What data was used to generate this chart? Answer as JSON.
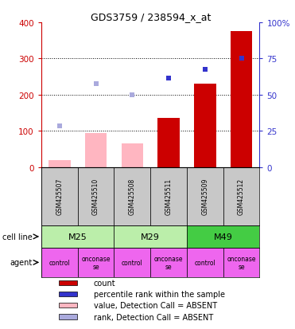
{
  "title": "GDS3759 / 238594_x_at",
  "samples": [
    "GSM425507",
    "GSM425510",
    "GSM425508",
    "GSM425511",
    "GSM425509",
    "GSM425512"
  ],
  "count_values": [
    null,
    null,
    null,
    135,
    230,
    375
  ],
  "count_absent": [
    20,
    95,
    65,
    null,
    null,
    null
  ],
  "rank_values_left": [
    null,
    null,
    null,
    245,
    270,
    300
  ],
  "rank_absent_left": [
    115,
    230,
    200,
    null,
    null,
    null
  ],
  "rank_values_right": [
    null,
    null,
    null,
    61,
    68,
    75
  ],
  "rank_absent_right": [
    29,
    58,
    50,
    null,
    null,
    null
  ],
  "ylim_left": [
    0,
    400
  ],
  "ylim_right": [
    0,
    100
  ],
  "yticks_left": [
    0,
    100,
    200,
    300,
    400
  ],
  "yticks_right": [
    0,
    25,
    50,
    75,
    100
  ],
  "yticklabels_right": [
    "0",
    "25",
    "50",
    "75",
    "100%"
  ],
  "cell_line_groups": [
    {
      "label": "M25",
      "start": 0,
      "end": 2,
      "color": "#BBEEAA"
    },
    {
      "label": "M29",
      "start": 2,
      "end": 4,
      "color": "#BBEEAA"
    },
    {
      "label": "M49",
      "start": 4,
      "end": 6,
      "color": "#44CC44"
    }
  ],
  "agents": [
    "control",
    "onconase\nse",
    "control",
    "onconase\nse",
    "control",
    "onconase\nse"
  ],
  "color_count": "#CC0000",
  "color_rank": "#3333CC",
  "color_count_absent": "#FFB6C1",
  "color_rank_absent": "#AAAADD",
  "bar_width": 0.6,
  "gsm_bg_color": "#C8C8C8",
  "agent_color": "#EE66EE",
  "legend_items": [
    {
      "color": "#CC0000",
      "label": "count"
    },
    {
      "color": "#3333CC",
      "label": "percentile rank within the sample"
    },
    {
      "color": "#FFB6C1",
      "label": "value, Detection Call = ABSENT"
    },
    {
      "color": "#AAAADD",
      "label": "rank, Detection Call = ABSENT"
    }
  ]
}
